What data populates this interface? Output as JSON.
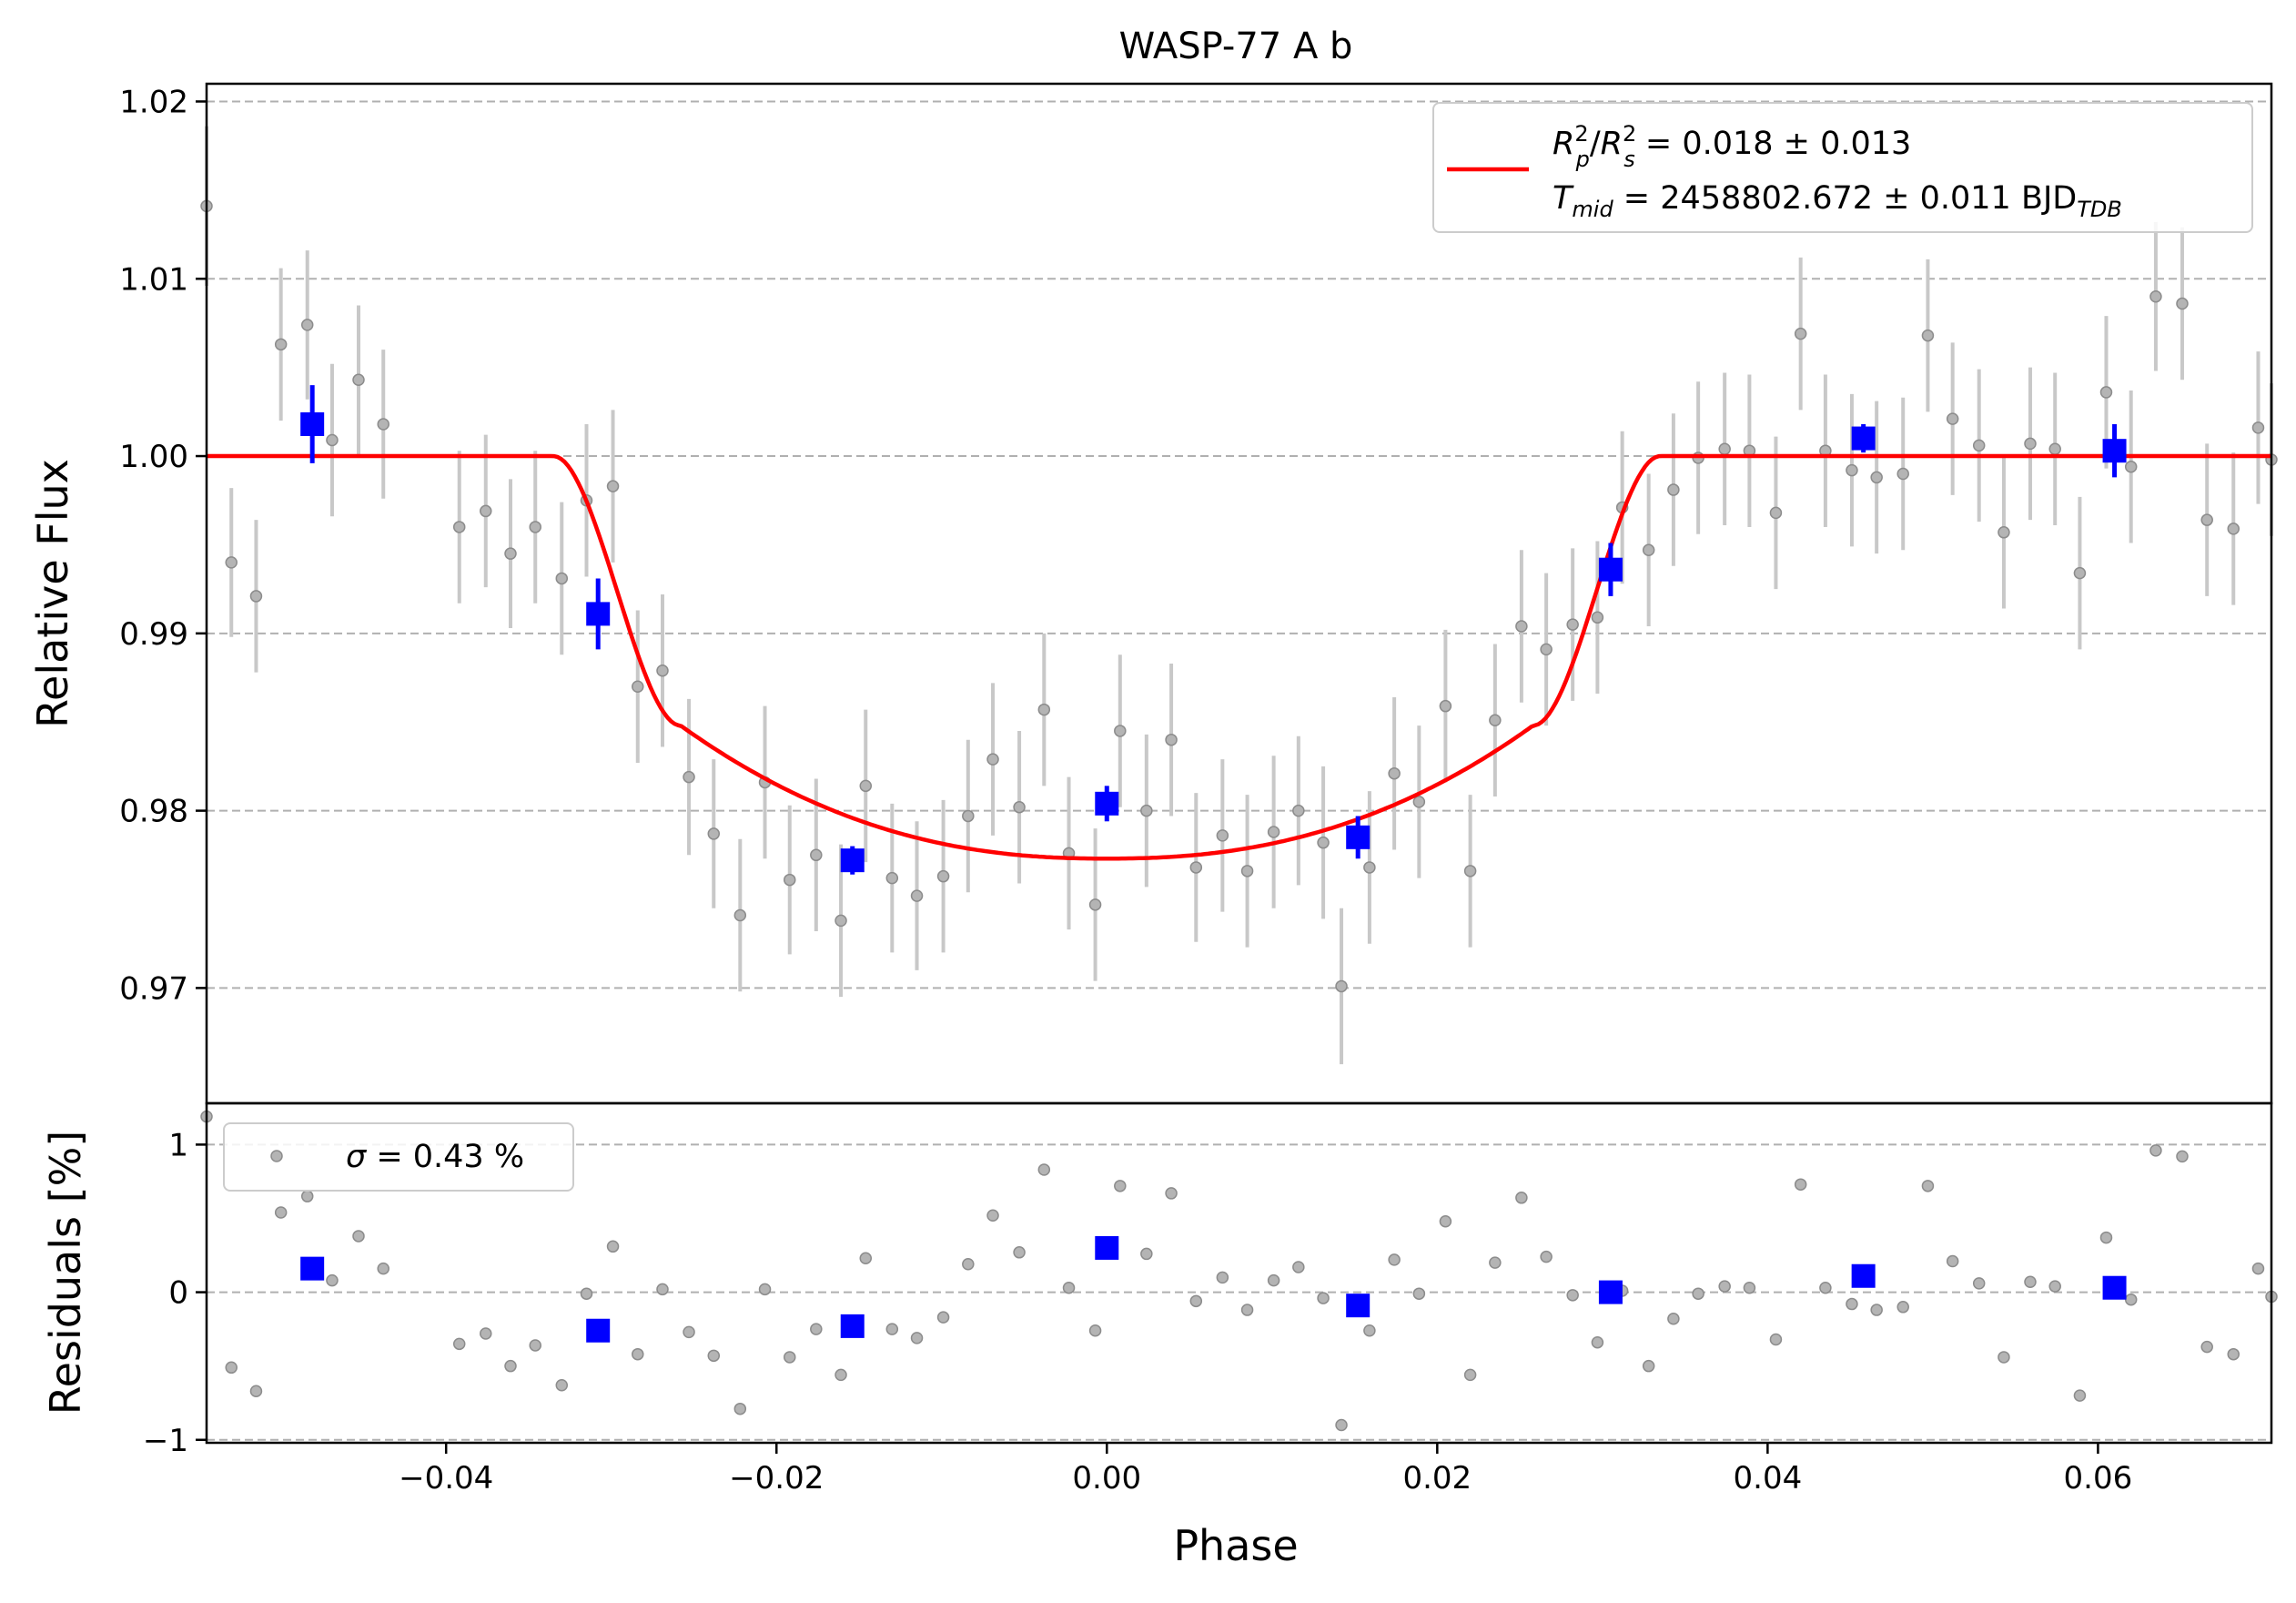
{
  "title": "WASP-77 A b",
  "colors": {
    "model": "#ff0000",
    "binned": "#0000ff",
    "raw": "#8c8c8c",
    "raw_err": "#c8c8c8",
    "grid": "#b0b0b0"
  },
  "chart_data": [
    {
      "type": "scatter",
      "panel": "light-curve",
      "ylabel": "Relative Flux",
      "xlim": [
        -0.0545,
        0.0705
      ],
      "ylim": [
        0.9635,
        1.021
      ],
      "yticks": [
        0.97,
        0.98,
        0.99,
        1.0,
        1.01,
        1.02
      ],
      "ytick_labels": [
        "0.97",
        "0.98",
        "0.99",
        "1.00",
        "1.01",
        "1.02"
      ],
      "grid": "horizontal dashed",
      "legend": {
        "placement": "top-right",
        "line1_main": "R",
        "line1_rest": " = 0.018 ± 0.013",
        "line2_main": "T",
        "line2_sub": "mid",
        "line2_rest": " = 2458802.672 ± 0.011 BJD",
        "line2_unit_sub": "TDB"
      },
      "model": {
        "name": "transit model",
        "depth_rp2_rs2": 0.018,
        "min_flux": 0.9773,
        "ingress_start": -0.0335,
        "ingress_end": -0.0258,
        "egress_start": 0.0258,
        "egress_end": 0.0335
      },
      "raw": [
        [
          -0.0545,
          1.0141,
          0.0045
        ],
        [
          -0.053,
          0.994,
          0.0042
        ],
        [
          -0.0515,
          0.9921,
          0.0043
        ],
        [
          -0.05,
          1.0063,
          0.0043
        ],
        [
          -0.0484,
          1.0074,
          0.0042
        ],
        [
          -0.0469,
          1.0009,
          0.0043
        ],
        [
          -0.0453,
          1.0043,
          0.0042
        ],
        [
          -0.0438,
          1.0018,
          0.0042
        ],
        [
          -0.0392,
          0.996,
          0.0043
        ],
        [
          -0.0376,
          0.9969,
          0.0043
        ],
        [
          -0.0361,
          0.9945,
          0.0042
        ],
        [
          -0.0346,
          0.996,
          0.0043
        ],
        [
          -0.033,
          0.9931,
          0.0043
        ],
        [
          -0.0315,
          0.9975,
          0.0043
        ],
        [
          -0.0299,
          0.9983,
          0.0043
        ],
        [
          -0.0284,
          0.987,
          0.0043
        ],
        [
          -0.0269,
          0.9879,
          0.0043
        ],
        [
          -0.0253,
          0.9819,
          0.0044
        ],
        [
          -0.0238,
          0.9787,
          0.0042
        ],
        [
          -0.0222,
          0.9741,
          0.0043
        ],
        [
          -0.0207,
          0.9816,
          0.0043
        ],
        [
          -0.0192,
          0.9761,
          0.0042
        ],
        [
          -0.0176,
          0.9775,
          0.0043
        ],
        [
          -0.0161,
          0.9738,
          0.0043
        ],
        [
          -0.0146,
          0.9814,
          0.0043
        ],
        [
          -0.013,
          0.9762,
          0.0042
        ],
        [
          -0.0115,
          0.9752,
          0.0042
        ],
        [
          -0.0099,
          0.9763,
          0.0043
        ],
        [
          -0.0084,
          0.9797,
          0.0043
        ],
        [
          -0.0069,
          0.9829,
          0.0043
        ],
        [
          -0.0053,
          0.9802,
          0.0043
        ],
        [
          -0.0038,
          0.9857,
          0.0043
        ],
        [
          -0.0023,
          0.9776,
          0.0043
        ],
        [
          -0.0007,
          0.9747,
          0.0043
        ],
        [
          0.0008,
          0.9845,
          0.0043
        ],
        [
          0.0024,
          0.98,
          0.0043
        ],
        [
          0.0039,
          0.984,
          0.0043
        ],
        [
          0.0054,
          0.9768,
          0.0042
        ],
        [
          0.007,
          0.9786,
          0.0043
        ],
        [
          0.0085,
          0.9766,
          0.0043
        ],
        [
          0.0101,
          0.9788,
          0.0043
        ],
        [
          0.0116,
          0.98,
          0.0042
        ],
        [
          0.0131,
          0.9782,
          0.0043
        ],
        [
          0.0142,
          0.9701,
          0.0044
        ],
        [
          0.0159,
          0.9768,
          0.0043
        ],
        [
          0.0174,
          0.9821,
          0.0043
        ],
        [
          0.0189,
          0.9805,
          0.0043
        ],
        [
          0.0205,
          0.9859,
          0.0043
        ],
        [
          0.022,
          0.9766,
          0.0043
        ],
        [
          0.0235,
          0.9851,
          0.0043
        ],
        [
          0.0251,
          0.9904,
          0.0043
        ],
        [
          0.0266,
          0.9891,
          0.0043
        ],
        [
          0.0282,
          0.9905,
          0.0043
        ],
        [
          0.0297,
          0.9909,
          0.0043
        ],
        [
          0.0312,
          0.9971,
          0.0043
        ],
        [
          0.0328,
          0.9947,
          0.0043
        ],
        [
          0.0343,
          0.9981,
          0.0043
        ],
        [
          0.0358,
          0.9999,
          0.0043
        ],
        [
          0.0374,
          1.0004,
          0.0043
        ],
        [
          0.0389,
          1.0003,
          0.0043
        ],
        [
          0.0405,
          0.9968,
          0.0043
        ],
        [
          0.042,
          1.0069,
          0.0043
        ],
        [
          0.0435,
          1.0003,
          0.0043
        ],
        [
          0.0451,
          0.9992,
          0.0043
        ],
        [
          0.0466,
          0.9988,
          0.0043
        ],
        [
          0.0482,
          0.999,
          0.0043
        ],
        [
          0.0497,
          1.0068,
          0.0043
        ],
        [
          0.0512,
          1.0021,
          0.0043
        ],
        [
          0.0528,
          1.0006,
          0.0043
        ],
        [
          0.0543,
          0.9957,
          0.0043
        ],
        [
          0.0559,
          1.0007,
          0.0043
        ],
        [
          0.0574,
          1.0004,
          0.0043
        ],
        [
          0.0589,
          0.9934,
          0.0043
        ],
        [
          0.0605,
          1.0036,
          0.0043
        ],
        [
          0.062,
          0.9994,
          0.0043
        ],
        [
          0.0635,
          1.009,
          0.0042
        ],
        [
          0.0651,
          1.0086,
          0.0043
        ],
        [
          0.0666,
          0.9964,
          0.0043
        ],
        [
          0.0682,
          0.9959,
          0.0043
        ],
        [
          0.0697,
          1.0016,
          0.0043
        ],
        [
          0.0705,
          0.9998,
          0.0043
        ]
      ],
      "binned": [
        [
          -0.0481,
          1.0018,
          0.0022
        ],
        [
          -0.0308,
          0.9911,
          0.002
        ],
        [
          -0.0154,
          0.9772,
          0.0008
        ],
        [
          0.0,
          0.9804,
          0.001
        ],
        [
          0.0152,
          0.9785,
          0.0012
        ],
        [
          0.0305,
          0.9936,
          0.0015
        ],
        [
          0.0458,
          1.001,
          0.0008
        ],
        [
          0.061,
          1.0003,
          0.0015
        ]
      ]
    },
    {
      "type": "scatter",
      "panel": "residuals",
      "xlabel": "Phase",
      "ylabel": "Residuals [%]",
      "xlim": [
        -0.0545,
        0.0705
      ],
      "ylim": [
        -1.02,
        1.28
      ],
      "xticks": [
        -0.04,
        -0.02,
        0.0,
        0.02,
        0.04,
        0.06
      ],
      "xtick_labels": [
        "−0.04",
        "−0.02",
        "0.00",
        "0.02",
        "0.04",
        "0.06"
      ],
      "yticks": [
        -1,
        0,
        1
      ],
      "ytick_labels": [
        "−1",
        "0",
        "1"
      ],
      "grid": "horizontal dashed",
      "legend": {
        "placement": "top-left",
        "symbol": "σ",
        "text": " = 0.43 %"
      },
      "raw": [
        [
          -0.0545,
          1.19
        ],
        [
          -0.053,
          -0.51
        ],
        [
          -0.0515,
          -0.67
        ],
        [
          -0.05,
          0.54
        ],
        [
          -0.0484,
          0.65
        ],
        [
          -0.0469,
          0.08
        ],
        [
          -0.0453,
          0.38
        ],
        [
          -0.0438,
          0.16
        ],
        [
          -0.0392,
          -0.35
        ],
        [
          -0.0376,
          -0.28
        ],
        [
          -0.0361,
          -0.5
        ],
        [
          -0.0346,
          -0.36
        ],
        [
          -0.033,
          -0.63
        ],
        [
          -0.0315,
          -0.01
        ],
        [
          -0.0299,
          0.31
        ],
        [
          -0.0284,
          -0.42
        ],
        [
          -0.0269,
          0.02
        ],
        [
          -0.0253,
          -0.27
        ],
        [
          -0.0238,
          -0.43
        ],
        [
          -0.0222,
          -0.79
        ],
        [
          -0.0207,
          0.02
        ],
        [
          -0.0192,
          -0.44
        ],
        [
          -0.0176,
          -0.25
        ],
        [
          -0.0161,
          -0.56
        ],
        [
          -0.0146,
          0.23
        ],
        [
          -0.013,
          -0.25
        ],
        [
          -0.0115,
          -0.31
        ],
        [
          -0.0099,
          -0.17
        ],
        [
          -0.0084,
          0.19
        ],
        [
          -0.0069,
          0.52
        ],
        [
          -0.0053,
          0.27
        ],
        [
          -0.0038,
          0.83
        ],
        [
          -0.0023,
          0.03
        ],
        [
          -0.0007,
          -0.26
        ],
        [
          0.0008,
          0.72
        ],
        [
          0.0024,
          0.26
        ],
        [
          0.0039,
          0.67
        ],
        [
          0.0054,
          -0.06
        ],
        [
          0.007,
          0.1
        ],
        [
          0.0085,
          -0.12
        ],
        [
          0.0101,
          0.08
        ],
        [
          0.0116,
          0.17
        ],
        [
          0.0131,
          -0.04
        ],
        [
          0.0142,
          -0.9
        ],
        [
          0.0159,
          -0.26
        ],
        [
          0.0174,
          0.22
        ],
        [
          0.0189,
          -0.01
        ],
        [
          0.0205,
          0.48
        ],
        [
          0.022,
          -0.56
        ],
        [
          0.0235,
          0.2
        ],
        [
          0.0251,
          0.64
        ],
        [
          0.0266,
          0.24
        ],
        [
          0.0282,
          -0.02
        ],
        [
          0.0297,
          -0.34
        ],
        [
          0.0312,
          0.01
        ],
        [
          0.0328,
          -0.5
        ],
        [
          0.0343,
          -0.18
        ],
        [
          0.0358,
          -0.01
        ],
        [
          0.0374,
          0.04
        ],
        [
          0.0389,
          0.03
        ],
        [
          0.0405,
          -0.32
        ],
        [
          0.042,
          0.73
        ],
        [
          0.0435,
          0.03
        ],
        [
          0.0451,
          -0.08
        ],
        [
          0.0466,
          -0.12
        ],
        [
          0.0482,
          -0.1
        ],
        [
          0.0497,
          0.72
        ],
        [
          0.0512,
          0.21
        ],
        [
          0.0528,
          0.06
        ],
        [
          0.0543,
          -0.44
        ],
        [
          0.0559,
          0.07
        ],
        [
          0.0574,
          0.04
        ],
        [
          0.0589,
          -0.7
        ],
        [
          0.0605,
          0.37
        ],
        [
          0.062,
          -0.05
        ],
        [
          0.0635,
          0.96
        ],
        [
          0.0651,
          0.92
        ],
        [
          0.0666,
          -0.37
        ],
        [
          0.0682,
          -0.42
        ],
        [
          0.0697,
          0.16
        ],
        [
          0.0705,
          -0.03
        ]
      ],
      "binned": [
        [
          -0.0481,
          0.16
        ],
        [
          -0.0308,
          -0.26
        ],
        [
          -0.0154,
          -0.23
        ],
        [
          0.0,
          0.3
        ],
        [
          0.0152,
          -0.09
        ],
        [
          0.0305,
          0.0
        ],
        [
          0.0458,
          0.11
        ],
        [
          0.061,
          0.03
        ]
      ]
    }
  ]
}
